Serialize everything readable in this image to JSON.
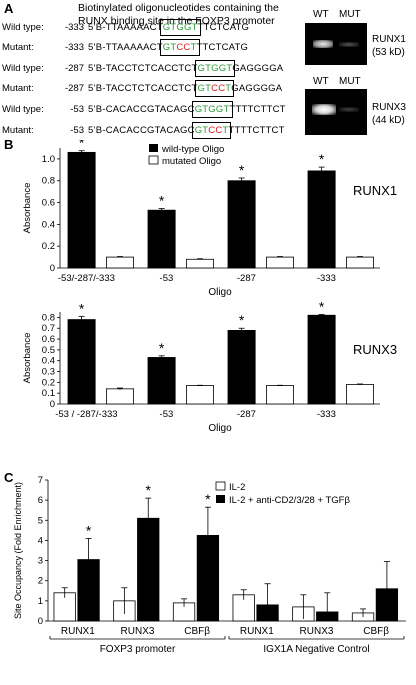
{
  "panelA": {
    "letter": "A",
    "title": "Biotinylated oligonucleotides containing the RUNX binding site in the FOXP3 promoter",
    "rows": [
      {
        "label": "Wild type:",
        "pos": "-333",
        "pre": "5’B-TTAAAAACT",
        "box": "GTGGT",
        "post": "TTCTCATG",
        "type": "wt"
      },
      {
        "label": "Mutant:",
        "pos": "-333",
        "pre": "5’B-TTAAAAACT",
        "box": "GTCCT",
        "post": "TTCTCATG",
        "type": "mut"
      },
      {
        "label": "Wild type:",
        "pos": "-287",
        "pre": "5’B-TACCTCTCACCTCT",
        "box": "GTGGT",
        "post": "GAGGGGA",
        "type": "wt"
      },
      {
        "label": "Mutant:",
        "pos": "-287",
        "pre": "5’B-TACCTCTCACCTCT",
        "box": "GTCCT",
        "post": "GAGGGGA",
        "type": "mut"
      },
      {
        "label": "Wild type:",
        "pos": "-53",
        "pre": "5’B-CACACCGTACAGC",
        "box": "GTGGT",
        "post": "TTTTCTTCT",
        "type": "wt"
      },
      {
        "label": "Mutant:",
        "pos": "-53",
        "pre": "5’B-CACACCGTACAGC",
        "box": "GTCCT",
        "post": "TTTTCTTCT",
        "type": "mut"
      }
    ],
    "blot1": {
      "wt": "WT",
      "mut": "MUT",
      "protein": "RUNX1",
      "size": "(53 kD)"
    },
    "blot2": {
      "wt": "WT",
      "mut": "MUT",
      "protein": "RUNX3",
      "size": "(44 kD)"
    }
  },
  "panelB": {
    "letter": "B",
    "legend": [
      "wild-type Oligo",
      "mutated Oligo"
    ],
    "star": "*"
  },
  "panelC": {
    "letter": "C",
    "legend": [
      "IL-2",
      "IL-2 + anti-CD2/3/28 + TGFβ"
    ],
    "star": "*"
  },
  "chart_data": [
    {
      "type": "bar",
      "title": "RUNX1",
      "xlabel": "Oligo",
      "ylabel": "Absorbance",
      "ylim": [
        0,
        1.1
      ],
      "yticks": [
        0,
        0.2,
        0.4,
        0.6,
        0.8,
        1.0
      ],
      "categories": [
        "-53/-287/-333",
        "-53",
        "-287",
        "-333"
      ],
      "series": [
        {
          "name": "wild-type Oligo",
          "values": [
            1.06,
            0.53,
            0.8,
            0.89
          ],
          "errors": [
            0.015,
            0.015,
            0.025,
            0.035
          ],
          "color": "#000000"
        },
        {
          "name": "mutated Oligo",
          "values": [
            0.1,
            0.08,
            0.1,
            0.1
          ],
          "errors": [
            0.005,
            0.005,
            0.005,
            0.005
          ],
          "color": "#ffffff"
        }
      ],
      "significant": [
        "-53/-287/-333",
        "-53",
        "-287",
        "-333"
      ]
    },
    {
      "type": "bar",
      "title": "RUNX3",
      "xlabel": "Oligo",
      "ylabel": "Absorbance",
      "ylim": [
        0,
        0.85
      ],
      "yticks": [
        0,
        0.1,
        0.2,
        0.3,
        0.4,
        0.5,
        0.6,
        0.7,
        0.8
      ],
      "categories": [
        "-53 / -287/-333",
        "-53",
        "-287",
        "-333"
      ],
      "series": [
        {
          "name": "wild-type Oligo",
          "values": [
            0.78,
            0.43,
            0.68,
            0.82
          ],
          "errors": [
            0.03,
            0.015,
            0.02,
            0.008
          ],
          "color": "#000000"
        },
        {
          "name": "mutated Oligo",
          "values": [
            0.14,
            0.17,
            0.17,
            0.18
          ],
          "errors": [
            0.008,
            0.003,
            0.003,
            0.005
          ],
          "color": "#ffffff"
        }
      ],
      "significant": [
        "-53 / -287/-333",
        "-53",
        "-287",
        "-333"
      ]
    },
    {
      "type": "bar",
      "ylabel": "Site Occupancy (Fold Enrichment)",
      "ylim": [
        0,
        7
      ],
      "yticks": [
        0,
        1,
        2,
        3,
        4,
        5,
        6,
        7
      ],
      "categories": [
        "RUNX1",
        "RUNX3",
        "CBFβ",
        "RUNX1",
        "RUNX3",
        "CBFβ"
      ],
      "groups": [
        {
          "label": "FOXP3 promoter",
          "categories": [
            0,
            1,
            2
          ]
        },
        {
          "label": "IGX1A Negative Control",
          "categories": [
            3,
            4,
            5
          ]
        }
      ],
      "series": [
        {
          "name": "IL-2",
          "values": [
            1.4,
            1.0,
            0.9,
            1.3,
            0.7,
            0.4
          ],
          "errors": [
            0.25,
            0.65,
            0.2,
            0.25,
            0.6,
            0.2
          ],
          "color": "#ffffff"
        },
        {
          "name": "IL-2 + anti-CD2/3/28 + TGFβ",
          "values": [
            3.05,
            5.1,
            4.25,
            0.8,
            0.45,
            1.6
          ],
          "errors": [
            1.05,
            1.0,
            1.4,
            1.05,
            0.95,
            1.35
          ],
          "color": "#000000"
        }
      ],
      "significant": [
        0,
        1,
        2
      ]
    }
  ]
}
